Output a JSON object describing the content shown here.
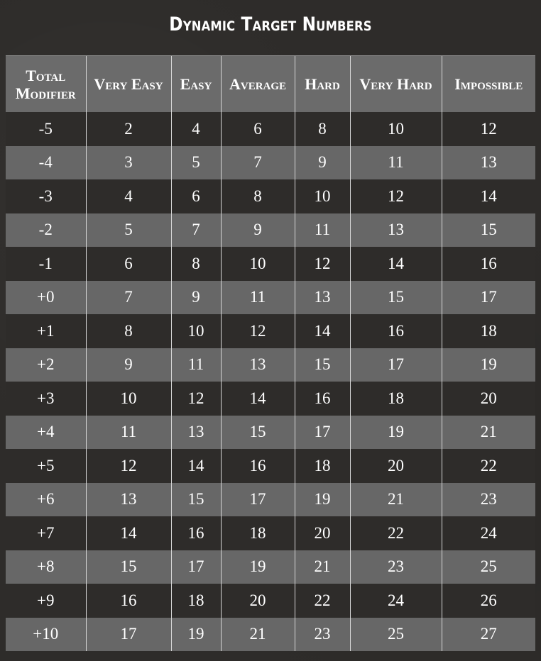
{
  "title": "Dynamic Target Numbers",
  "table": {
    "headers": [
      "Total Modifier",
      "Very Easy",
      "Easy",
      "Average",
      "Hard",
      "Very Hard",
      "Impossible"
    ],
    "rows": [
      [
        "-5",
        "2",
        "4",
        "6",
        "8",
        "10",
        "12"
      ],
      [
        "-4",
        "3",
        "5",
        "7",
        "9",
        "11",
        "13"
      ],
      [
        "-3",
        "4",
        "6",
        "8",
        "10",
        "12",
        "14"
      ],
      [
        "-2",
        "5",
        "7",
        "9",
        "11",
        "13",
        "15"
      ],
      [
        "-1",
        "6",
        "8",
        "10",
        "12",
        "14",
        "16"
      ],
      [
        "+0",
        "7",
        "9",
        "11",
        "13",
        "15",
        "17"
      ],
      [
        "+1",
        "8",
        "10",
        "12",
        "14",
        "16",
        "18"
      ],
      [
        "+2",
        "9",
        "11",
        "13",
        "15",
        "17",
        "19"
      ],
      [
        "+3",
        "10",
        "12",
        "14",
        "16",
        "18",
        "20"
      ],
      [
        "+4",
        "11",
        "13",
        "15",
        "17",
        "19",
        "21"
      ],
      [
        "+5",
        "12",
        "14",
        "16",
        "18",
        "20",
        "22"
      ],
      [
        "+6",
        "13",
        "15",
        "17",
        "19",
        "21",
        "23"
      ],
      [
        "+7",
        "14",
        "16",
        "18",
        "20",
        "22",
        "24"
      ],
      [
        "+8",
        "15",
        "17",
        "19",
        "21",
        "23",
        "25"
      ],
      [
        "+9",
        "16",
        "18",
        "20",
        "22",
        "24",
        "26"
      ],
      [
        "+10",
        "17",
        "19",
        "21",
        "23",
        "25",
        "27"
      ]
    ]
  },
  "colors": {
    "background": "#2e2c2a",
    "header_row": "#6b6b6b",
    "striped_row": "#676767",
    "text": "#ffffff",
    "divider": "#d8d8d8"
  }
}
